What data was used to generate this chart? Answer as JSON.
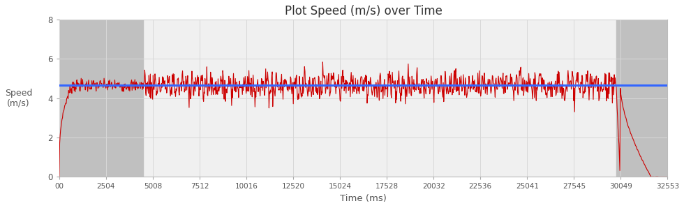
{
  "title": "Plot Speed (m/s) over Time",
  "xlabel": "Time (ms)",
  "ylabel": "Speed\n(m/s)",
  "xlim": [
    0,
    32553
  ],
  "ylim": [
    0,
    8
  ],
  "yticks": [
    0,
    2,
    4,
    6,
    8
  ],
  "xtick_labels": [
    "00",
    "2504",
    "5008",
    "7512",
    "10016",
    "12520",
    "15024",
    "17528",
    "20032",
    "22536",
    "25041",
    "27545",
    "30049",
    "32553"
  ],
  "xtick_values": [
    0,
    2504,
    5008,
    7512,
    10016,
    12520,
    15024,
    17528,
    20032,
    22536,
    25041,
    27545,
    30049,
    32553
  ],
  "avg_speed": 4.65,
  "avg_line_color": "#3366ff",
  "speed_line_color": "#cc0000",
  "bg_color_fig": "#ffffff",
  "bg_color_plot": "#f0f0f0",
  "bg_color_gray_zone": "#c0c0c0",
  "gray_region_end1": 4500,
  "gray_region_start2": 29800,
  "total_duration": 32553,
  "ramp_up_end": 700,
  "ramp_down_start": 29800,
  "noise_std": 0.32,
  "seed": 7
}
